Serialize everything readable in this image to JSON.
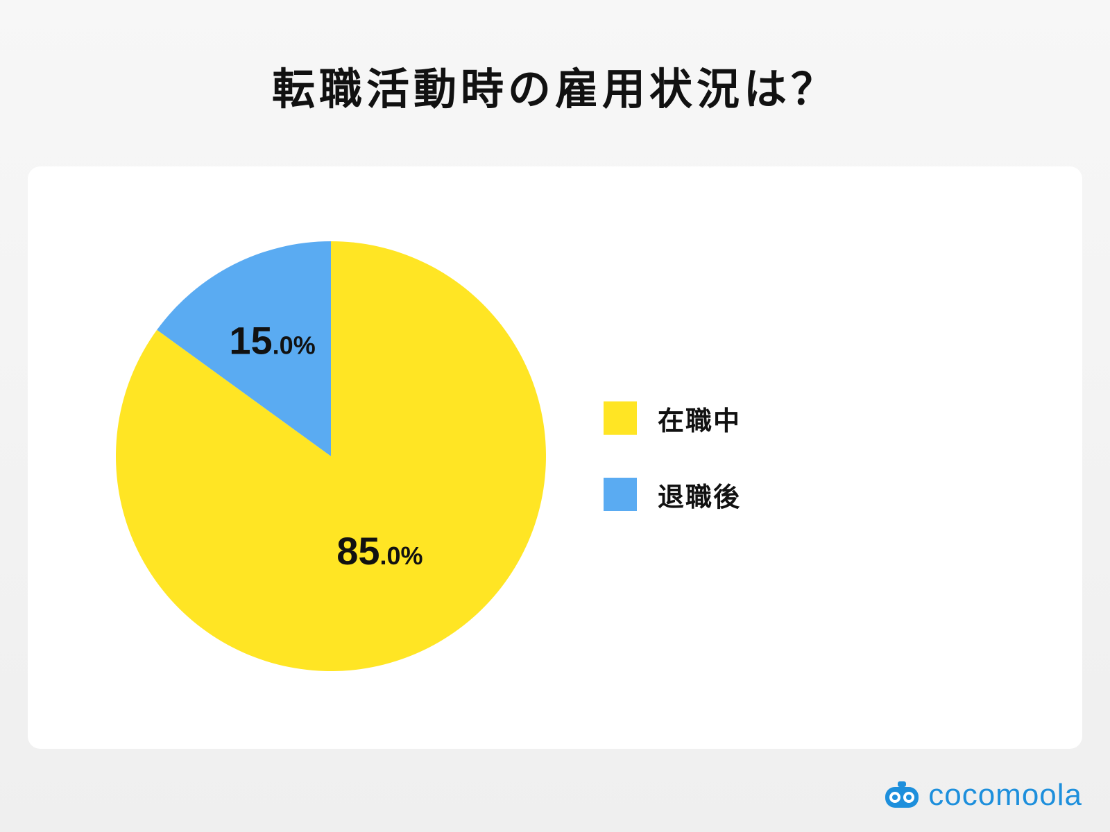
{
  "title": "転職活動時の雇用状況は？",
  "chart_data": {
    "type": "pie",
    "title": "転職活動時の雇用状況は？",
    "categories": [
      "在職中",
      "退職後"
    ],
    "values": [
      85.0,
      15.0
    ],
    "colors": [
      "#FFE524",
      "#5AABF2"
    ],
    "labels": [
      {
        "main": "85",
        "decimal": ".0%"
      },
      {
        "main": "15",
        "decimal": ".0%"
      }
    ],
    "start_angle_deg": 0,
    "direction": "clockwise",
    "legend_position": "right"
  },
  "legend": {
    "items": [
      {
        "label": "在職中",
        "color": "#FFE524"
      },
      {
        "label": "退職後",
        "color": "#5AABF2"
      }
    ]
  },
  "brand": {
    "name": "cocomoola",
    "color": "#1d8fdc",
    "icon": "cocomoola-logo-icon"
  }
}
